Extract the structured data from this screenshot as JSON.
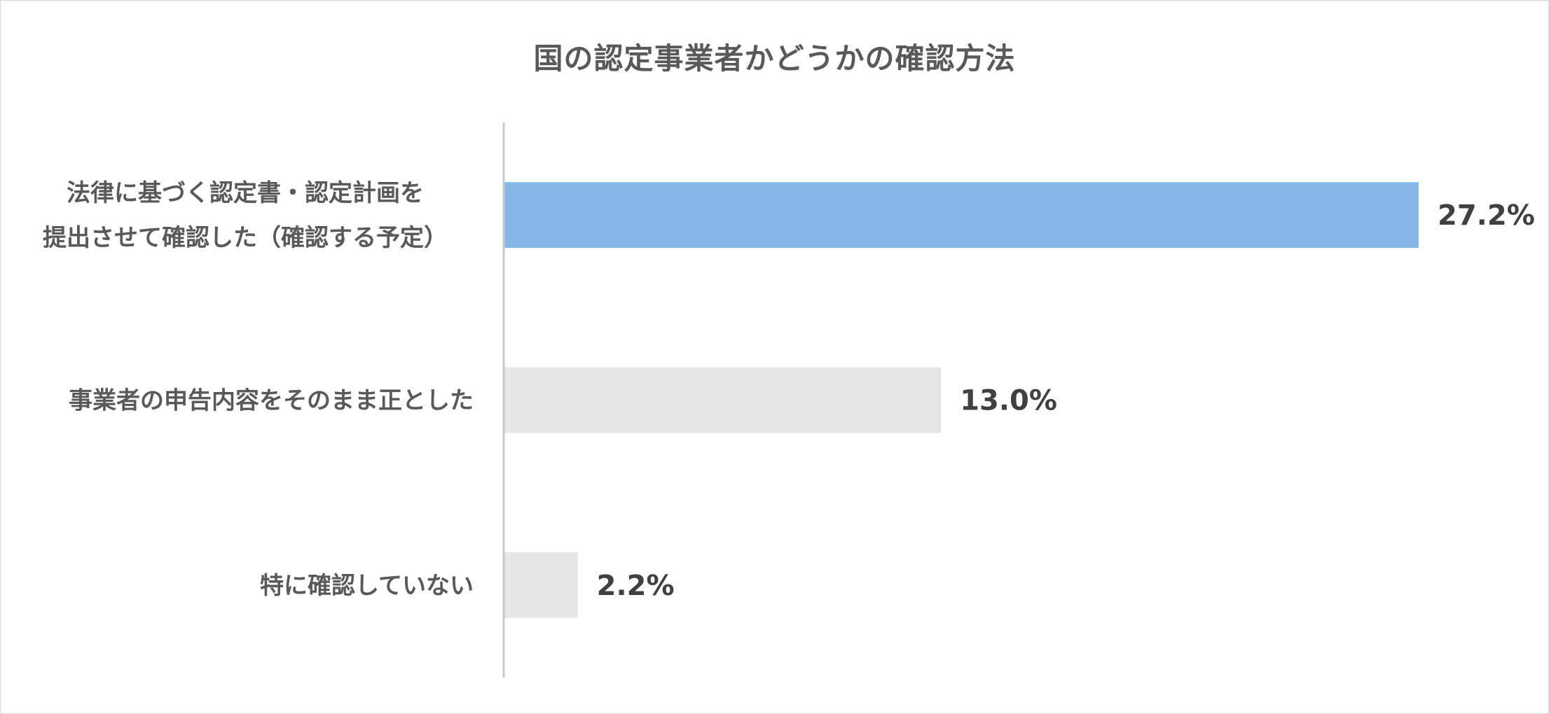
{
  "chart_data": {
    "type": "bar",
    "orientation": "horizontal",
    "title": "国の認定事業者かどうかの確認方法",
    "categories": [
      [
        "法律に基づく認定書・認定計画を",
        "提出させて確認した（確認する予定）"
      ],
      [
        "事業者の申告内容をそのまま正とした"
      ],
      [
        "特に確認していない"
      ]
    ],
    "values": [
      27.2,
      13.0,
      2.2
    ],
    "value_labels": [
      "27.2%",
      "13.0%",
      "2.2%"
    ],
    "unit": "%",
    "xlim": [
      0,
      27.2
    ],
    "grid": false,
    "legend": "none",
    "colors": {
      "highlight": "#85b8e6",
      "default": "#e6e6e6",
      "axis": "#c8c8c8"
    },
    "highlight_index": 0
  }
}
